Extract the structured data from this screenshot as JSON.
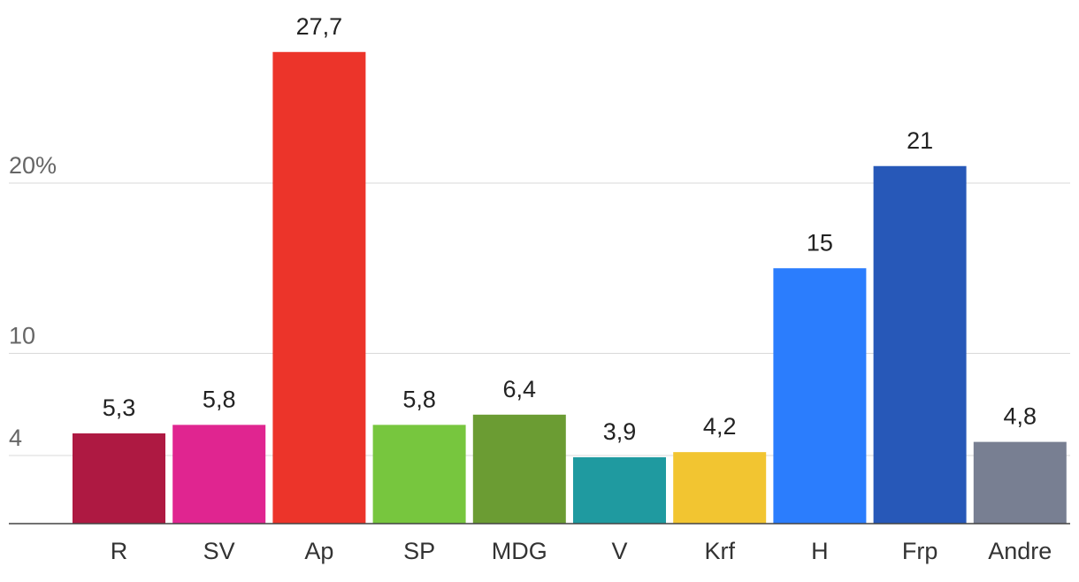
{
  "chart_data": {
    "type": "bar",
    "categories": [
      "R",
      "SV",
      "Ap",
      "SP",
      "MDG",
      "V",
      "Krf",
      "H",
      "Frp",
      "Andre"
    ],
    "values": [
      5.3,
      5.8,
      27.7,
      5.8,
      6.4,
      3.9,
      4.2,
      15,
      21,
      4.8
    ],
    "value_labels": [
      "5,3",
      "5,8",
      "27,7",
      "5,8",
      "6,4",
      "3,9",
      "4,2",
      "15",
      "21",
      "4,8"
    ],
    "colors": [
      "#ae1942",
      "#e02590",
      "#ec342a",
      "#77c63e",
      "#6b9c33",
      "#1f9aa0",
      "#f2c531",
      "#2b7dfd",
      "#2758b8",
      "#787f92"
    ],
    "y_ticks": [
      {
        "value": 4,
        "label": "4"
      },
      {
        "value": 10,
        "label": "10"
      },
      {
        "value": 20,
        "label": "20%"
      }
    ],
    "ylim": [
      0,
      30
    ],
    "grid": true,
    "title": "",
    "xlabel": "",
    "ylabel": ""
  }
}
